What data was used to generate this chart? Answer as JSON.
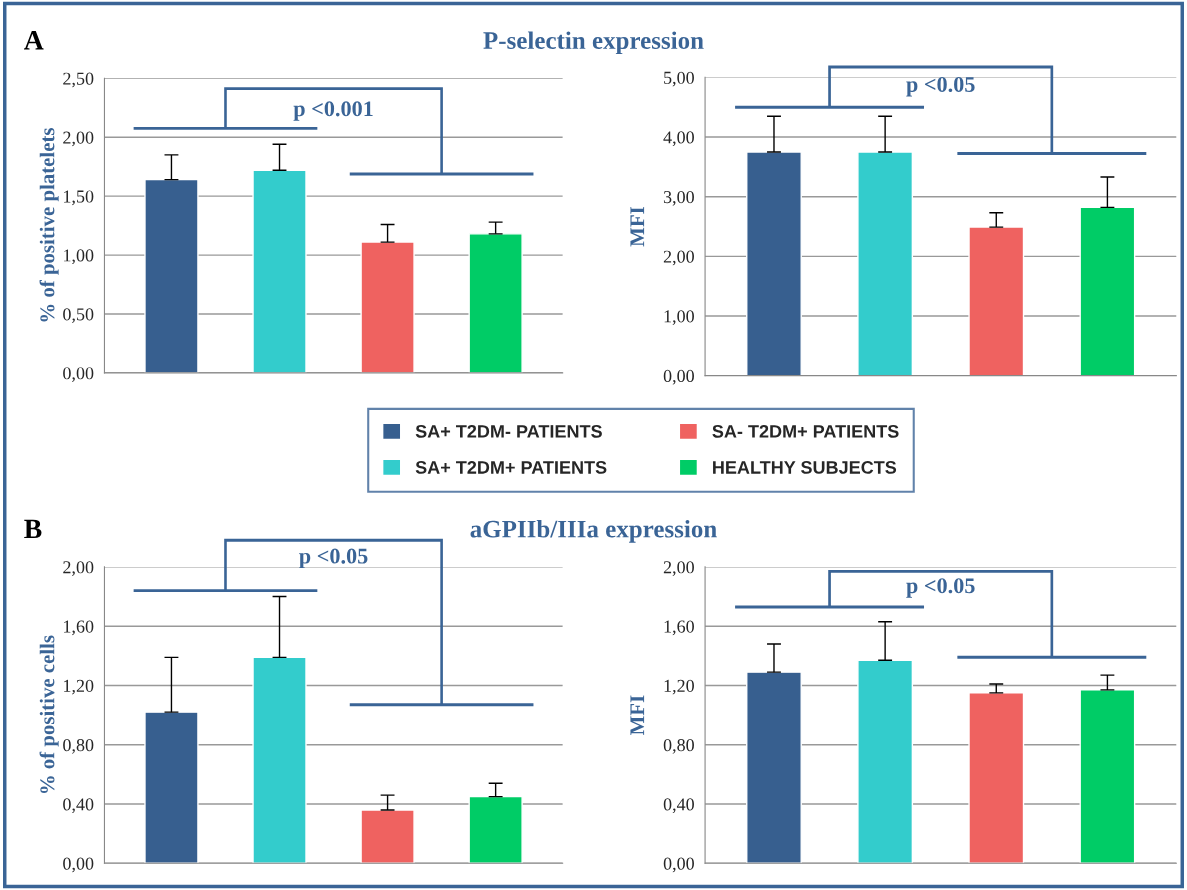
{
  "chart_data": [
    {
      "type": "bar",
      "title": "P-selectin expression",
      "ylabel": "% of positive platelets",
      "annotations": [
        "A",
        "p <0.001"
      ],
      "categories": [
        null,
        null,
        null,
        null
      ],
      "legend": "bottom",
      "grid": "y",
      "ylim": [
        0,
        2.5
      ],
      "yticks": [
        {
          "value": 0,
          "label": "0,00"
        },
        {
          "value": 0.5,
          "label": "0,50"
        },
        {
          "value": 1,
          "label": "1,00"
        },
        {
          "value": 1.5,
          "label": "1,50"
        },
        {
          "value": 2,
          "label": "2,00"
        },
        {
          "value": 2.5,
          "label": "2,50"
        }
      ],
      "series": [
        {
          "name": "SA+ T2DM- PATIENTS",
          "color": "#375f8f",
          "values": [
            1.64,
            null,
            null,
            null
          ],
          "errors": [
            [
              1.64,
              1.85
            ],
            null,
            null,
            null
          ]
        },
        {
          "name": "SA+ T2DM+ PATIENTS",
          "color": "#33cccc",
          "values": [
            null,
            1.72,
            null,
            null
          ],
          "errors": [
            null,
            [
              1.72,
              1.94
            ],
            null,
            null
          ]
        },
        {
          "name": "SA- T2DM+ PATIENTS",
          "color": "#ef6260",
          "values": [
            null,
            null,
            1.11,
            null
          ],
          "errors": [
            null,
            null,
            [
              1.11,
              1.26
            ],
            null
          ]
        },
        {
          "name": "HEALTHY SUBJECTS",
          "color": "#00cc66",
          "values": [
            null,
            null,
            null,
            1.18
          ],
          "errors": [
            null,
            null,
            null,
            [
              1.18,
              1.28
            ]
          ]
        }
      ]
    },
    {
      "type": "bar",
      "ylabel": "MFI",
      "annotations": [
        "p <0.05"
      ],
      "categories": [
        null,
        null,
        null,
        null
      ],
      "grid": "y",
      "ylim": [
        0,
        5
      ],
      "yticks": [
        {
          "value": 0,
          "label": "0,00"
        },
        {
          "value": 1,
          "label": "1,00"
        },
        {
          "value": 2,
          "label": "2,00"
        },
        {
          "value": 3,
          "label": "3,00"
        },
        {
          "value": 4,
          "label": "4,00"
        },
        {
          "value": 5,
          "label": "5,00"
        }
      ],
      "series": [
        {
          "color": "#375f8f",
          "values": [
            3.75,
            null,
            null,
            null
          ],
          "errors": [
            [
              3.75,
              4.35
            ],
            null,
            null,
            null
          ]
        },
        {
          "color": "#33cccc",
          "values": [
            null,
            3.75,
            null,
            null
          ],
          "errors": [
            null,
            [
              3.75,
              4.35
            ],
            null,
            null
          ]
        },
        {
          "color": "#ef6260",
          "values": [
            null,
            null,
            2.49,
            null
          ],
          "errors": [
            null,
            null,
            [
              2.49,
              2.73
            ],
            null
          ]
        },
        {
          "color": "#00cc66",
          "values": [
            null,
            null,
            null,
            2.82
          ],
          "errors": [
            null,
            null,
            null,
            [
              2.82,
              3.33
            ]
          ]
        }
      ]
    },
    {
      "type": "bar",
      "title": "aGPIIb/IIIa expression",
      "ylabel": "% of positive cells",
      "annotations": [
        "B",
        "p <0.05"
      ],
      "categories": [
        null,
        null,
        null,
        null
      ],
      "grid": "y",
      "ylim": [
        0,
        2
      ],
      "yticks": [
        {
          "value": 0,
          "label": "0,00"
        },
        {
          "value": 0.4,
          "label": "0,40"
        },
        {
          "value": 0.8,
          "label": "0,80"
        },
        {
          "value": 1.2,
          "label": "1,20"
        },
        {
          "value": 1.6,
          "label": "1,60"
        },
        {
          "value": 2,
          "label": "2,00"
        }
      ],
      "series": [
        {
          "color": "#375f8f",
          "values": [
            1.02,
            null,
            null,
            null
          ],
          "errors": [
            [
              1.02,
              1.39
            ],
            null,
            null,
            null
          ]
        },
        {
          "color": "#33cccc",
          "values": [
            null,
            1.39,
            null,
            null
          ],
          "errors": [
            null,
            [
              1.39,
              1.8
            ],
            null,
            null
          ]
        },
        {
          "color": "#ef6260",
          "values": [
            null,
            null,
            0.36,
            null
          ],
          "errors": [
            null,
            null,
            [
              0.36,
              0.46
            ],
            null
          ]
        },
        {
          "color": "#00cc66",
          "values": [
            null,
            null,
            null,
            0.45
          ],
          "errors": [
            null,
            null,
            null,
            [
              0.45,
              0.54
            ]
          ]
        }
      ]
    },
    {
      "type": "bar",
      "ylabel": "MFI",
      "annotations": [
        "p <0.05"
      ],
      "categories": [
        null,
        null,
        null,
        null
      ],
      "grid": "y",
      "ylim": [
        0,
        2
      ],
      "yticks": [
        {
          "value": 0,
          "label": "0,00"
        },
        {
          "value": 0.4,
          "label": "0,40"
        },
        {
          "value": 0.8,
          "label": "0,80"
        },
        {
          "value": 1.2,
          "label": "1,20"
        },
        {
          "value": 1.6,
          "label": "1,60"
        },
        {
          "value": 2,
          "label": "2,00"
        }
      ],
      "series": [
        {
          "color": "#375f8f",
          "values": [
            1.29,
            null,
            null,
            null
          ],
          "errors": [
            [
              1.29,
              1.48
            ],
            null,
            null,
            null
          ]
        },
        {
          "color": "#33cccc",
          "values": [
            null,
            1.37,
            null,
            null
          ],
          "errors": [
            null,
            [
              1.37,
              1.63
            ],
            null,
            null
          ]
        },
        {
          "color": "#ef6260",
          "values": [
            null,
            null,
            1.15,
            null
          ],
          "errors": [
            null,
            null,
            [
              1.15,
              1.21
            ],
            null
          ]
        },
        {
          "color": "#00cc66",
          "values": [
            null,
            null,
            null,
            1.17
          ],
          "errors": [
            null,
            null,
            null,
            [
              1.17,
              1.27
            ]
          ]
        }
      ]
    }
  ]
}
